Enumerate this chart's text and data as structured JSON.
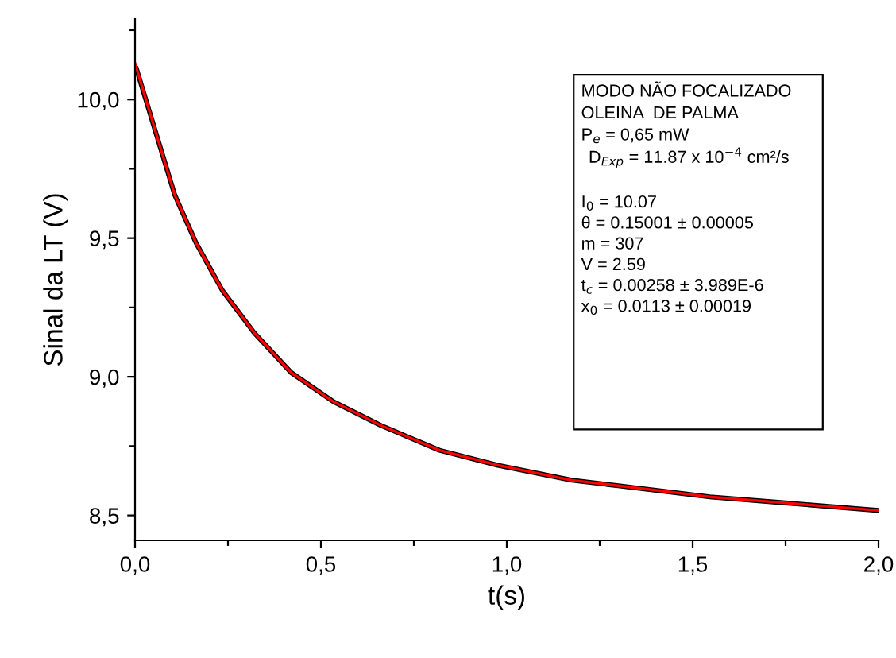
{
  "chart_data": {
    "type": "line",
    "xlabel": "t(s)",
    "ylabel": "Sinal da LT (V)",
    "xlim": [
      0,
      2
    ],
    "ylim": [
      8.41,
      10.29
    ],
    "xticks": [
      {
        "value": 0,
        "label": "0,0"
      },
      {
        "value": 0.25,
        "label": null
      },
      {
        "value": 0.5,
        "label": "0,5"
      },
      {
        "value": 0.75,
        "label": null
      },
      {
        "value": 1,
        "label": "1,0"
      },
      {
        "value": 1.25,
        "label": null
      },
      {
        "value": 1.5,
        "label": "1,5"
      },
      {
        "value": 1.75,
        "label": null
      },
      {
        "value": 2,
        "label": "2,0"
      }
    ],
    "yticks": [
      {
        "value": 8.5,
        "label": "8,5"
      },
      {
        "value": 8.75,
        "label": null
      },
      {
        "value": 9,
        "label": "9,0"
      },
      {
        "value": 9.25,
        "label": null
      },
      {
        "value": 9.5,
        "label": "9,5"
      },
      {
        "value": 9.75,
        "label": null
      },
      {
        "value": 10,
        "label": "10,0"
      },
      {
        "value": 10.25,
        "label": null
      }
    ],
    "grid": false,
    "legend": false,
    "marker": "none",
    "line_style": "solid",
    "series": [
      {
        "color": "#000000",
        "x": [
          0.004,
          0.064,
          0.107,
          0.164,
          0.235,
          0.321,
          0.42,
          0.534,
          0.662,
          0.819,
          0.976,
          1.175,
          1.3,
          1.546,
          1.75,
          2.0
        ],
        "values": [
          10.11,
          9.845,
          9.655,
          9.483,
          9.311,
          9.158,
          9.015,
          8.91,
          8.824,
          8.735,
          8.681,
          8.627,
          8.607,
          8.567,
          8.545,
          8.518
        ]
      },
      {
        "color": "#ff0000",
        "x": [
          0.0,
          0.064,
          0.107,
          0.164,
          0.235,
          0.321,
          0.42,
          0.534,
          0.662,
          0.819,
          0.976,
          1.175,
          1.3,
          1.546,
          1.75,
          2.0
        ],
        "values": [
          10.13,
          9.845,
          9.655,
          9.483,
          9.311,
          9.158,
          9.015,
          8.91,
          8.824,
          8.735,
          8.681,
          8.627,
          8.607,
          8.567,
          8.545,
          8.518
        ]
      }
    ],
    "annotations": [
      "MODO NÃO FOCALIZADO",
      "OLEINA  DE PALMA",
      "P$_{e}$ = 0,65 mW",
      "D$_{Exp}$ = 11.87 x 10$^{−4}$ cm²/s",
      "I$_{0}$ = 10.07",
      "θ = 0.15001 ± 0.00005",
      "m = 307",
      "V = 2.59",
      "t$_{c}$ = 0.00258 ± 3.989E-6",
      "x$_{0}$ = 0.0113 ± 0.00019"
    ]
  }
}
